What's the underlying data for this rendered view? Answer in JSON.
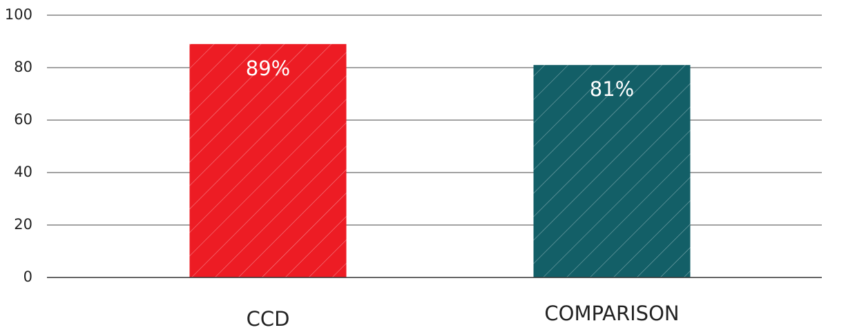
{
  "chart_data": {
    "type": "bar",
    "categories": [
      "CCD",
      "COMPARISON"
    ],
    "values": [
      89,
      81
    ],
    "value_labels": [
      "89%",
      "81%"
    ],
    "colors": [
      "#ed1c24",
      "#135f67"
    ],
    "ylim": [
      0,
      100
    ],
    "yticks": [
      0,
      20,
      40,
      60,
      80,
      100
    ],
    "grid": true
  }
}
